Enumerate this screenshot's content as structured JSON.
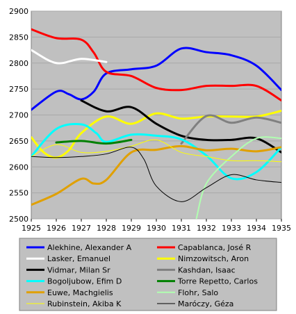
{
  "chart_data": {
    "type": "line",
    "title": "",
    "xlabel": "",
    "ylabel": "",
    "ylim": [
      2500,
      2900
    ],
    "xlim": [
      1925,
      1935
    ],
    "yticks": [
      2500,
      2550,
      2600,
      2650,
      2700,
      2750,
      2800,
      2850,
      2900
    ],
    "xticks": [
      "1925",
      "1926",
      "1927",
      "1928",
      "1929",
      "1930",
      "1931",
      "1932",
      "1933",
      "1934",
      "1935"
    ],
    "grid": "y",
    "plot_background": "#c0c0c0",
    "legend_position": "bottom",
    "series": [
      {
        "name": "Alekhine, Alexander A",
        "color": "#0000ff",
        "width": 3,
        "x": [
          1925,
          1926,
          1926.5,
          1927,
          1927.5,
          1928,
          1929,
          1930,
          1931,
          1932,
          1933,
          1934,
          1935
        ],
        "y": [
          2710,
          2745,
          2740,
          2730,
          2745,
          2780,
          2788,
          2795,
          2828,
          2821,
          2815,
          2795,
          2748
        ]
      },
      {
        "name": "Capablanca, José R",
        "color": "#ff0000",
        "width": 3,
        "x": [
          1925,
          1926,
          1927,
          1927.5,
          1928,
          1929,
          1930,
          1931,
          1932,
          1933,
          1934,
          1935
        ],
        "y": [
          2865,
          2848,
          2845,
          2820,
          2783,
          2775,
          2752,
          2748,
          2756,
          2756,
          2756,
          2728
        ]
      },
      {
        "name": "Lasker, Emanuel",
        "color": "#ffffff",
        "width": 3,
        "x": [
          1925,
          1926,
          1927,
          1928
        ],
        "y": [
          2825,
          2800,
          2808,
          2802
        ]
      },
      {
        "name": "Nimzowitsch, Aron",
        "color": "#ffff00",
        "width": 3,
        "x": [
          1925,
          1925.5,
          1926,
          1926.5,
          1927,
          1928,
          1929,
          1930,
          1931,
          1932,
          1933,
          1934,
          1935
        ],
        "y": [
          2657,
          2628,
          2618,
          2632,
          2665,
          2697,
          2683,
          2703,
          2693,
          2697,
          2697,
          2697,
          2708
        ]
      },
      {
        "name": "Vidmar, Milan Sr",
        "color": "#000000",
        "width": 3,
        "x": [
          1927,
          1928,
          1929,
          1930,
          1931,
          1932,
          1933,
          1934,
          1935
        ],
        "y": [
          2728,
          2707,
          2715,
          2683,
          2660,
          2652,
          2652,
          2655,
          2628
        ]
      },
      {
        "name": "Kashdan, Isaac",
        "color": "#808080",
        "width": 3,
        "x": [
          1931,
          1932,
          1933,
          1934,
          1935
        ],
        "y": [
          2645,
          2698,
          2685,
          2695,
          2685
        ]
      },
      {
        "name": "Bogoljubow, Efim D",
        "color": "#00ffff",
        "width": 3,
        "x": [
          1925,
          1926,
          1927,
          1927.6,
          1928,
          1929,
          1930,
          1931,
          1932,
          1933,
          1934,
          1935
        ],
        "y": [
          2620,
          2673,
          2682,
          2665,
          2648,
          2662,
          2660,
          2653,
          2622,
          2578,
          2590,
          2638
        ]
      },
      {
        "name": "Torre Repetto, Carlos",
        "color": "#008000",
        "width": 3,
        "x": [
          1926,
          1927,
          1928,
          1929
        ],
        "y": [
          2647,
          2650,
          2645,
          2652
        ]
      },
      {
        "name": "Euwe, Machgielis",
        "color": "#e0a000",
        "width": 3,
        "x": [
          1925,
          1926,
          1927,
          1927.5,
          1928,
          1929,
          1930,
          1931,
          1932,
          1933,
          1934,
          1935
        ],
        "y": [
          2527,
          2548,
          2577,
          2568,
          2575,
          2628,
          2633,
          2640,
          2632,
          2635,
          2630,
          2638
        ]
      },
      {
        "name": "Flohr, Salo",
        "color": "#b0ffb0",
        "width": 2,
        "x": [
          1931.6,
          1932,
          1933,
          1934,
          1935
        ],
        "y": [
          2500,
          2568,
          2620,
          2655,
          2655
        ]
      },
      {
        "name": "Rubinstein, Akiba K",
        "color": "#ffff00",
        "width": 1,
        "x": [
          1925,
          1926,
          1927,
          1928,
          1929,
          1930,
          1931,
          1932,
          1933,
          1934,
          1935
        ],
        "y": [
          2620,
          2643,
          2628,
          2630,
          2640,
          2652,
          2628,
          2620,
          2612,
          2612,
          2610
        ]
      },
      {
        "name": "Maróczy, Géza",
        "color": "#000000",
        "width": 1,
        "x": [
          1925,
          1926,
          1927,
          1928,
          1929,
          1929.5,
          1930,
          1931,
          1932,
          1933,
          1934,
          1935
        ],
        "y": [
          2620,
          2618,
          2620,
          2625,
          2638,
          2615,
          2563,
          2533,
          2560,
          2585,
          2575,
          2570
        ]
      }
    ]
  }
}
